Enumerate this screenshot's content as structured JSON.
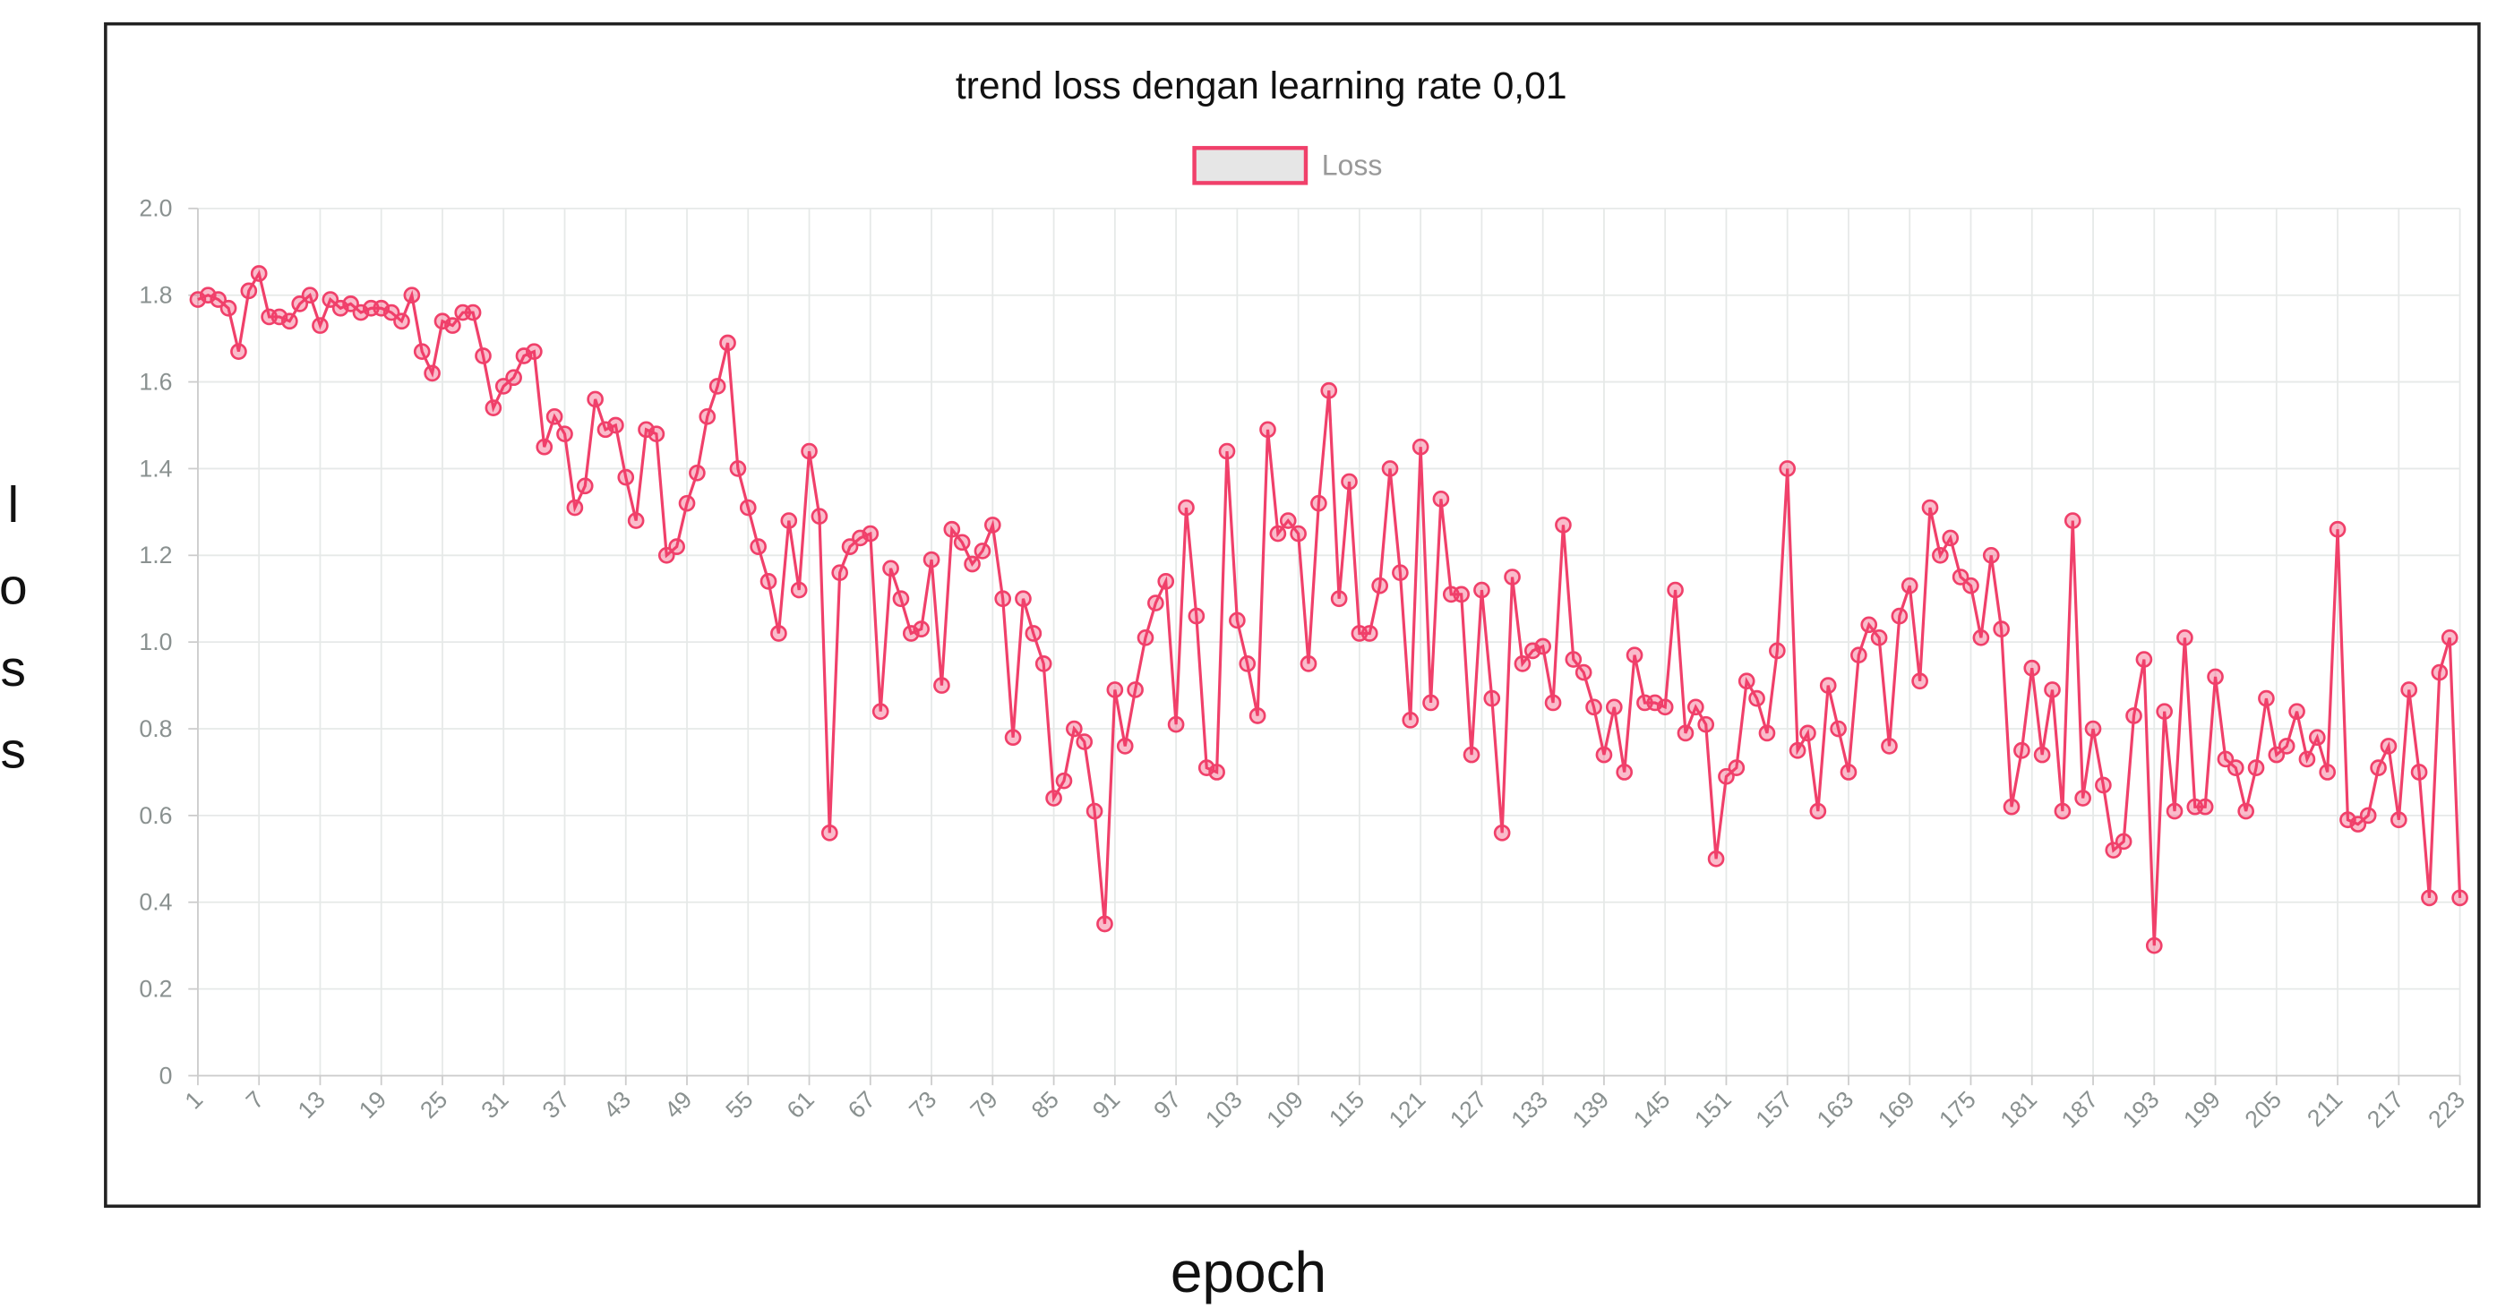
{
  "chart_data": {
    "type": "line",
    "title": "trend loss dengan learning rate 0,01",
    "xlabel": "epoch",
    "ylabel": "loss",
    "legend": "top",
    "grid": true,
    "x": [
      1,
      2,
      3,
      4,
      5,
      6,
      7,
      8,
      9,
      10,
      11,
      12,
      13,
      14,
      15,
      16,
      17,
      18,
      19,
      20,
      21,
      22,
      23,
      24,
      25,
      26,
      27,
      28,
      29,
      30,
      31,
      32,
      33,
      34,
      35,
      36,
      37,
      38,
      39,
      40,
      41,
      42,
      43,
      44,
      45,
      46,
      47,
      48,
      49,
      50,
      51,
      52,
      53,
      54,
      55,
      56,
      57,
      58,
      59,
      60,
      61,
      62,
      63,
      64,
      65,
      66,
      67,
      68,
      69,
      70,
      71,
      72,
      73,
      74,
      75,
      76,
      77,
      78,
      79,
      80,
      81,
      82,
      83,
      84,
      85,
      86,
      87,
      88,
      89,
      90,
      91,
      92,
      93,
      94,
      95,
      96,
      97,
      98,
      99,
      100,
      101,
      102,
      103,
      104,
      105,
      106,
      107,
      108,
      109,
      110,
      111,
      112,
      113,
      114,
      115,
      116,
      117,
      118,
      119,
      120,
      121,
      122,
      123,
      124,
      125,
      126,
      127,
      128,
      129,
      130,
      131,
      132,
      133,
      134,
      135,
      136,
      137,
      138,
      139,
      140,
      141,
      142,
      143,
      144,
      145,
      146,
      147,
      148,
      149,
      150,
      151,
      152,
      153,
      154,
      155,
      156,
      157,
      158,
      159,
      160,
      161,
      162,
      163,
      164,
      165,
      166,
      167,
      168,
      169,
      170,
      171,
      172,
      173,
      174,
      175,
      176,
      177,
      178,
      179,
      180,
      181,
      182,
      183,
      184,
      185,
      186,
      187,
      188,
      189,
      190,
      191,
      192,
      193,
      194,
      195,
      196,
      197,
      198,
      199,
      200,
      201,
      202,
      203,
      204,
      205,
      206,
      207,
      208,
      209,
      210,
      211,
      212,
      213,
      214,
      215,
      216,
      217,
      218,
      219,
      220,
      221,
      222,
      223
    ],
    "xlim": [
      1,
      223
    ],
    "xticks": [
      1,
      7,
      13,
      19,
      25,
      31,
      37,
      43,
      49,
      55,
      61,
      67,
      73,
      79,
      85,
      91,
      97,
      103,
      109,
      115,
      121,
      127,
      133,
      139,
      145,
      151,
      157,
      163,
      169,
      175,
      181,
      187,
      193,
      199,
      205,
      211,
      217,
      223
    ],
    "ylim": [
      0,
      2
    ],
    "yticks": [
      0,
      0.2,
      0.4,
      0.6,
      0.8,
      {
        "value": 1,
        "label": "1.0"
      },
      1.2,
      1.4,
      1.6,
      1.8,
      {
        "value": 2,
        "label": "2.0"
      }
    ],
    "series": [
      {
        "name": "Loss",
        "color": "#f0406a",
        "values": [
          1.79,
          1.8,
          1.79,
          1.77,
          1.67,
          1.81,
          1.85,
          1.75,
          1.75,
          1.74,
          1.78,
          1.8,
          1.73,
          1.79,
          1.77,
          1.78,
          1.76,
          1.77,
          1.77,
          1.76,
          1.74,
          1.8,
          1.67,
          1.62,
          1.74,
          1.73,
          1.76,
          1.76,
          1.66,
          1.54,
          1.59,
          1.61,
          1.66,
          1.67,
          1.45,
          1.52,
          1.48,
          1.31,
          1.36,
          1.56,
          1.49,
          1.5,
          1.38,
          1.28,
          1.49,
          1.48,
          1.2,
          1.22,
          1.32,
          1.39,
          1.52,
          1.59,
          1.69,
          1.4,
          1.31,
          1.22,
          1.14,
          1.02,
          1.28,
          1.12,
          1.44,
          1.29,
          0.56,
          1.16,
          1.22,
          1.24,
          1.25,
          0.84,
          1.17,
          1.1,
          1.02,
          1.03,
          1.19,
          0.9,
          1.26,
          1.23,
          1.18,
          1.21,
          1.27,
          1.1,
          0.78,
          1.1,
          1.02,
          0.95,
          0.64,
          0.68,
          0.8,
          0.77,
          0.61,
          0.35,
          0.89,
          0.76,
          0.89,
          1.01,
          1.09,
          1.14,
          0.81,
          1.31,
          1.06,
          0.71,
          0.7,
          1.44,
          1.05,
          0.95,
          0.83,
          1.49,
          1.25,
          1.28,
          1.25,
          0.95,
          1.32,
          1.58,
          1.1,
          1.37,
          1.02,
          1.02,
          1.13,
          1.4,
          1.16,
          0.82,
          1.45,
          0.86,
          1.33,
          1.11,
          1.11,
          0.74,
          1.12,
          0.87,
          0.56,
          1.15,
          0.95,
          0.98,
          0.99,
          0.86,
          1.27,
          0.96,
          0.93,
          0.85,
          0.74,
          0.85,
          0.7,
          0.97,
          0.86,
          0.86,
          0.85,
          1.12,
          0.79,
          0.85,
          0.81,
          0.5,
          0.69,
          0.71,
          0.91,
          0.87,
          0.79,
          0.98,
          1.4,
          0.75,
          0.79,
          0.61,
          0.9,
          0.8,
          0.7,
          0.97,
          1.04,
          1.01,
          0.76,
          1.06,
          1.13,
          0.91,
          1.31,
          1.2,
          1.24,
          1.15,
          1.13,
          1.01,
          1.2,
          1.03,
          0.62,
          0.75,
          0.94,
          0.74,
          0.89,
          0.61,
          1.28,
          0.64,
          0.8,
          0.67,
          0.52,
          0.54,
          0.83,
          0.96,
          0.3,
          0.84,
          0.61,
          1.01,
          0.62,
          0.62,
          0.92,
          0.73,
          0.71,
          0.61,
          0.71,
          0.87,
          0.74,
          0.76,
          0.84,
          0.73,
          0.78,
          0.7,
          1.26,
          0.59,
          0.58,
          0.6,
          0.71,
          0.76,
          0.59,
          0.89,
          0.7,
          0.41,
          0.93,
          1.01,
          0.41
        ]
      }
    ]
  }
}
